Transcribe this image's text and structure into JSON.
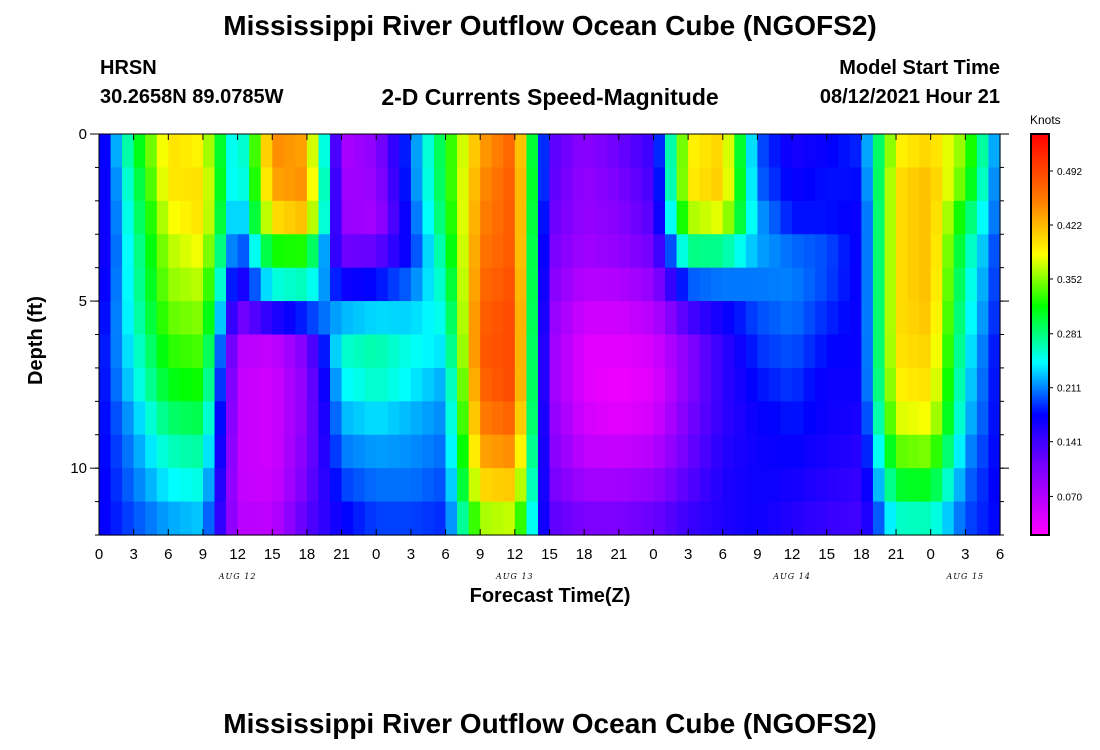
{
  "header": {
    "title": "Mississippi River Outflow Ocean Cube (NGOFS2)",
    "station": "HRSN",
    "coordinates": "30.2658N  89.0785W",
    "subtitle": "2-D Currents Speed-Magnitude",
    "model_label": "Model Start Time",
    "model_time": "08/12/2021 Hour 21"
  },
  "footer": {
    "title": "Mississippi River Outflow Ocean Cube (NGOFS2)"
  },
  "chart_data": {
    "type": "heatmap",
    "title": "2-D Currents Speed-Magnitude",
    "xlabel": "Forecast Time(Z)",
    "ylabel": "Depth (ft)",
    "x_ticks": [
      "0",
      "3",
      "6",
      "9",
      "12",
      "15",
      "18",
      "21",
      "0",
      "3",
      "6",
      "9",
      "12",
      "15",
      "18",
      "21",
      "0",
      "3",
      "6",
      "9",
      "12",
      "15",
      "18",
      "21",
      "0",
      "3",
      "6"
    ],
    "x_tick_hours": [
      0,
      3,
      6,
      9,
      12,
      15,
      18,
      21,
      24,
      27,
      30,
      33,
      36,
      39,
      42,
      45,
      48,
      51,
      54,
      57,
      60,
      63,
      66,
      69,
      72,
      75,
      78
    ],
    "date_labels": [
      {
        "label": "AUG 12",
        "hour": 12
      },
      {
        "label": "AUG 13",
        "hour": 36
      },
      {
        "label": "AUG 14",
        "hour": 60
      },
      {
        "label": "AUG 15",
        "hour": 75
      }
    ],
    "xlim": [
      0,
      78
    ],
    "y_ticks": [
      "0",
      "5",
      "10"
    ],
    "y_tick_values": [
      0,
      5,
      10
    ],
    "ylim": [
      0,
      12
    ],
    "colorbar": {
      "unit": "Knots",
      "ticks": [
        "0.492",
        "0.422",
        "0.352",
        "0.281",
        "0.211",
        "0.141",
        "0.070"
      ],
      "tick_values": [
        0.492,
        0.422,
        0.352,
        0.281,
        0.211,
        0.141,
        0.07
      ],
      "range": [
        0.02,
        0.54
      ]
    },
    "depths_ft": [
      0.0,
      1.25,
      2.5,
      3.75,
      5.0,
      6.25,
      7.5,
      8.75,
      10.0,
      11.25,
      12.0
    ],
    "time_hours": [
      0,
      3,
      6,
      9,
      12,
      15,
      18,
      21,
      24,
      27,
      30,
      33,
      36,
      39,
      42,
      45,
      48,
      51,
      54,
      57,
      60,
      63,
      66,
      69,
      72,
      75,
      78
    ],
    "speed_knots": [
      [
        0.15,
        0.3,
        0.4,
        0.38,
        0.22,
        0.45,
        0.42,
        0.07,
        0.1,
        0.2,
        0.31,
        0.43,
        0.47,
        0.13,
        0.1,
        0.12,
        0.15,
        0.38,
        0.4,
        0.2,
        0.16,
        0.17,
        0.19,
        0.38,
        0.4,
        0.35,
        0.2
      ],
      [
        0.15,
        0.28,
        0.4,
        0.4,
        0.22,
        0.44,
        0.45,
        0.08,
        0.09,
        0.2,
        0.31,
        0.44,
        0.48,
        0.13,
        0.09,
        0.11,
        0.14,
        0.4,
        0.42,
        0.2,
        0.17,
        0.18,
        0.18,
        0.4,
        0.42,
        0.34,
        0.19
      ],
      [
        0.15,
        0.27,
        0.38,
        0.4,
        0.2,
        0.4,
        0.42,
        0.09,
        0.08,
        0.19,
        0.3,
        0.45,
        0.48,
        0.12,
        0.09,
        0.1,
        0.13,
        0.36,
        0.38,
        0.22,
        0.18,
        0.18,
        0.17,
        0.4,
        0.42,
        0.3,
        0.19
      ],
      [
        0.15,
        0.26,
        0.36,
        0.38,
        0.17,
        0.3,
        0.3,
        0.12,
        0.13,
        0.18,
        0.28,
        0.46,
        0.48,
        0.11,
        0.08,
        0.09,
        0.11,
        0.26,
        0.25,
        0.22,
        0.21,
        0.2,
        0.17,
        0.4,
        0.42,
        0.27,
        0.18
      ],
      [
        0.16,
        0.26,
        0.35,
        0.36,
        0.13,
        0.22,
        0.24,
        0.2,
        0.21,
        0.22,
        0.26,
        0.47,
        0.49,
        0.1,
        0.06,
        0.06,
        0.08,
        0.16,
        0.18,
        0.2,
        0.21,
        0.19,
        0.17,
        0.4,
        0.42,
        0.26,
        0.18
      ],
      [
        0.17,
        0.25,
        0.33,
        0.34,
        0.07,
        0.06,
        0.11,
        0.26,
        0.27,
        0.25,
        0.24,
        0.48,
        0.49,
        0.09,
        0.04,
        0.04,
        0.05,
        0.1,
        0.15,
        0.19,
        0.2,
        0.18,
        0.17,
        0.4,
        0.41,
        0.25,
        0.17
      ],
      [
        0.17,
        0.24,
        0.31,
        0.32,
        0.06,
        0.05,
        0.1,
        0.24,
        0.26,
        0.24,
        0.22,
        0.47,
        0.49,
        0.09,
        0.04,
        0.03,
        0.04,
        0.1,
        0.15,
        0.18,
        0.19,
        0.17,
        0.17,
        0.39,
        0.4,
        0.24,
        0.17
      ],
      [
        0.17,
        0.22,
        0.28,
        0.29,
        0.06,
        0.05,
        0.1,
        0.22,
        0.23,
        0.22,
        0.21,
        0.45,
        0.47,
        0.1,
        0.05,
        0.04,
        0.05,
        0.11,
        0.15,
        0.17,
        0.18,
        0.17,
        0.16,
        0.37,
        0.38,
        0.23,
        0.17
      ],
      [
        0.17,
        0.21,
        0.25,
        0.26,
        0.06,
        0.05,
        0.11,
        0.2,
        0.21,
        0.21,
        0.2,
        0.42,
        0.43,
        0.11,
        0.07,
        0.07,
        0.08,
        0.12,
        0.16,
        0.17,
        0.17,
        0.16,
        0.15,
        0.32,
        0.33,
        0.21,
        0.17
      ],
      [
        0.17,
        0.2,
        0.23,
        0.24,
        0.06,
        0.06,
        0.12,
        0.18,
        0.2,
        0.2,
        0.19,
        0.38,
        0.39,
        0.12,
        0.1,
        0.1,
        0.11,
        0.14,
        0.16,
        0.17,
        0.16,
        0.15,
        0.14,
        0.28,
        0.28,
        0.2,
        0.17
      ],
      [
        0.17,
        0.19,
        0.2,
        0.21,
        0.08,
        0.07,
        0.14,
        0.16,
        0.18,
        0.18,
        0.18,
        0.32,
        0.33,
        0.14,
        0.12,
        0.12,
        0.13,
        0.15,
        0.16,
        0.17,
        0.15,
        0.14,
        0.14,
        0.22,
        0.23,
        0.19,
        0.18
      ]
    ]
  }
}
